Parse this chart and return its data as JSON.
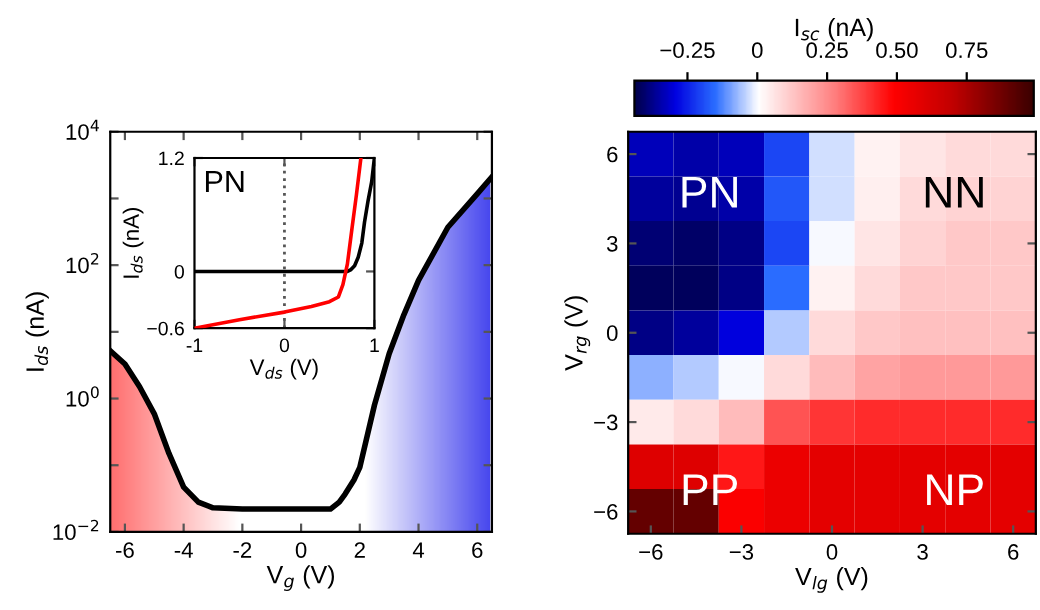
{
  "chart_data": [
    {
      "type": "line",
      "xlabel": "V$_{g}$ (V)",
      "ylabel": "I$_{ds}$ (nA)",
      "log": "y",
      "xlim": [
        -6.5,
        6.5
      ],
      "xticks": [
        -6,
        -4,
        -2,
        0,
        2,
        4,
        6
      ],
      "ylim": [
        0.01,
        10000
      ],
      "yticks": [
        {
          "value": 0.01,
          "label": "10$^{−2}$"
        },
        {
          "value": 0.1,
          "label": null
        },
        {
          "value": 1,
          "label": "10$^{0}$"
        },
        {
          "value": 10,
          "label": null
        },
        {
          "value": 100,
          "label": "10$^{2}$"
        },
        {
          "value": 1000,
          "label": null
        },
        {
          "value": 10000,
          "label": "10$^{4}$"
        }
      ],
      "grid": false,
      "legend": false,
      "x": [
        -6.5,
        -6,
        -5.5,
        -5,
        -4.5,
        -4,
        -3.5,
        -3,
        -2,
        -1,
        0,
        1,
        1.3,
        1.5,
        1.8,
        2,
        2.5,
        3,
        3.5,
        4,
        5,
        6,
        6.5
      ],
      "series": [
        {
          "color": "#000000",
          "values": [
            5.2,
            3.3,
            1.5,
            0.59,
            0.15,
            0.047,
            0.028,
            0.023,
            0.022,
            0.022,
            0.022,
            0.022,
            0.028,
            0.037,
            0.06,
            0.093,
            0.8,
            4.7,
            18,
            59,
            370,
            1170,
            2100
          ]
        }
      ]
    },
    {
      "type": "line",
      "xlabel": "V$_{ds}$ (V)",
      "ylabel": "I$_{ds}$ (nA)",
      "xlim": [
        -1,
        1
      ],
      "xticks": [
        -1,
        0,
        1
      ],
      "ylim": [
        -0.6,
        1.2
      ],
      "yticks": [
        {
          "value": -0.6,
          "label": "−0.6"
        },
        0,
        1.2
      ],
      "grid": false,
      "legend": false,
      "annotations": [
        "PN"
      ],
      "ref_lines": [
        {
          "axis": "x",
          "value": 0,
          "line_style": "dotted",
          "color": "#555555"
        }
      ],
      "series": [
        {
          "color": "#000000",
          "x": [
            -1,
            0,
            0.5,
            0.7,
            0.74,
            0.78,
            0.82,
            0.86,
            0.89,
            0.93,
            0.97,
            1.0
          ],
          "values": [
            0,
            0,
            0,
            0,
            0.02,
            0.06,
            0.15,
            0.3,
            0.52,
            0.75,
            0.95,
            1.2
          ]
        },
        {
          "color": "#ff0000",
          "x": [
            -1,
            -0.5,
            0,
            0.3,
            0.5,
            0.6,
            0.65,
            0.7,
            0.75,
            0.8,
            0.85
          ],
          "values": [
            -0.6,
            -0.51,
            -0.43,
            -0.37,
            -0.32,
            -0.27,
            -0.14,
            0.08,
            0.45,
            0.81,
            1.2
          ]
        }
      ]
    },
    {
      "type": "heatmap",
      "xlabel": "V$_{lg}$ (V)",
      "ylabel": "V$_{rg}$ (V)",
      "clabel": "I$_{sc}$ (nA)",
      "categories": [
        "−6",
        null,
        "−3",
        null,
        "0",
        null,
        "3",
        null,
        "6"
      ],
      "y_categories": [
        "6",
        null,
        "3",
        null,
        "0",
        null,
        "−3",
        null,
        "−6"
      ],
      "clim": [
        -0.44,
        0.99
      ],
      "cticks": [
        {
          "value": -0.25,
          "label": "−0.25"
        },
        0,
        {
          "value": 0.25,
          "label": "0.25"
        },
        {
          "value": 0.5,
          "label": "0.50"
        },
        {
          "value": 0.75,
          "label": "0.75"
        }
      ],
      "annotations": [
        "PN",
        "NN",
        "PP",
        "NP"
      ],
      "cells": [
        [
          -0.33,
          -0.35,
          -0.33,
          -0.2,
          -0.03,
          0.03,
          0.06,
          0.08,
          0.08
        ],
        [
          -0.36,
          -0.37,
          -0.35,
          -0.18,
          -0.03,
          0.04,
          0.08,
          0.1,
          0.1
        ],
        [
          -0.4,
          -0.41,
          -0.38,
          -0.2,
          0.0,
          0.06,
          0.1,
          0.12,
          0.12
        ],
        [
          -0.42,
          -0.42,
          -0.38,
          -0.15,
          0.03,
          0.08,
          0.12,
          0.12,
          0.12
        ],
        [
          -0.38,
          -0.36,
          -0.3,
          -0.05,
          0.08,
          0.12,
          0.14,
          0.14,
          0.14
        ],
        [
          -0.08,
          -0.05,
          0.0,
          0.08,
          0.15,
          0.2,
          0.22,
          0.22,
          0.22
        ],
        [
          0.05,
          0.08,
          0.15,
          0.35,
          0.4,
          0.42,
          0.42,
          0.42,
          0.42
        ],
        [
          0.6,
          0.6,
          0.45,
          0.55,
          0.58,
          0.58,
          0.58,
          0.58,
          0.58
        ],
        [
          0.9,
          0.9,
          0.5,
          0.55,
          0.58,
          0.58,
          0.58,
          0.58,
          0.58
        ]
      ]
    }
  ]
}
